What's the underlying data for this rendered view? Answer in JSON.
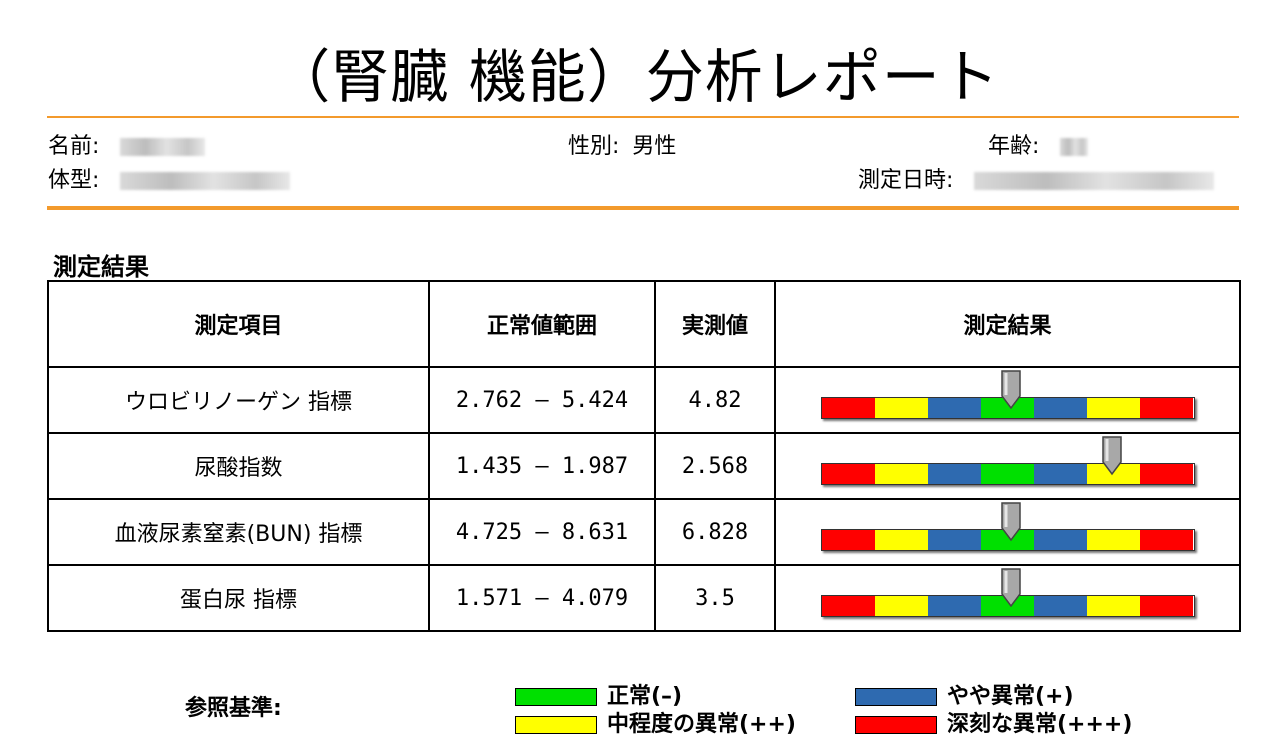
{
  "title": "（腎臓 機能）分析レポート",
  "patient": {
    "name_label": "名前:",
    "gender_label": "性別:",
    "gender_value": "男性",
    "age_label": "年齢:",
    "body_label": "体型:",
    "date_label": "測定日時:"
  },
  "section_title": "測定結果",
  "table": {
    "headers": [
      "測定項目",
      "正常値範囲",
      "実測値",
      "測定結果"
    ],
    "rows": [
      {
        "item": "ウロビリノーゲン 指標",
        "range": "2.762 – 5.424",
        "value": "4.82",
        "level_position": 0.51
      },
      {
        "item": "尿酸指数",
        "range": "1.435 – 1.987",
        "value": "2.568",
        "level_position": 0.78
      },
      {
        "item": "血液尿素窒素(BUN) 指標",
        "range": "4.725 – 8.631",
        "value": "6.828",
        "level_position": 0.51
      },
      {
        "item": "蛋白尿 指標",
        "range": "1.571 – 4.079",
        "value": "3.5",
        "level_position": 0.51
      }
    ]
  },
  "bar_colors": [
    "#ff0000",
    "#ffff00",
    "#2e6ab0",
    "#00e000",
    "#2e6ab0",
    "#ffff00",
    "#ff0000"
  ],
  "legend": {
    "label": "参照基準:",
    "items": [
      {
        "text": "正常(–)",
        "color": "#00e000"
      },
      {
        "text": "やや異常(+)",
        "color": "#2e6ab0"
      },
      {
        "text": "中程度の異常(++)",
        "color": "#ffff00"
      },
      {
        "text": "深刻な異常(+++)",
        "color": "#ff0000"
      }
    ]
  }
}
